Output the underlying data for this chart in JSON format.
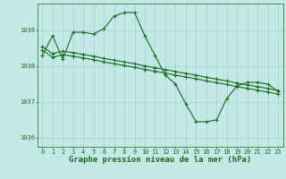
{
  "title": "Graphe pression niveau de la mer (hPa)",
  "bg_color": "#c2e8e8",
  "line_color": "#1a6b1a",
  "grid_color": "#9ecece",
  "ylim": [
    1035.75,
    1039.75
  ],
  "yticks": [
    1036,
    1037,
    1038,
    1039
  ],
  "xlim": [
    -0.5,
    23.5
  ],
  "xticks": [
    0,
    1,
    2,
    3,
    4,
    5,
    6,
    7,
    8,
    9,
    10,
    11,
    12,
    13,
    14,
    15,
    16,
    17,
    18,
    19,
    20,
    21,
    22,
    23
  ],
  "series1": {
    "x": [
      0,
      1,
      2,
      3,
      4,
      5,
      6,
      7,
      8,
      9,
      10,
      11,
      12,
      13,
      14,
      15,
      16,
      17,
      18,
      19,
      20,
      21,
      22,
      23
    ],
    "y": [
      1038.3,
      1038.85,
      1038.2,
      1038.95,
      1038.95,
      1038.9,
      1039.05,
      1039.4,
      1039.5,
      1039.5,
      1038.85,
      1038.3,
      1037.75,
      1037.5,
      1036.95,
      1036.45,
      1036.45,
      1036.5,
      1037.1,
      1037.45,
      1037.55,
      1037.55,
      1037.5,
      1037.3
    ]
  },
  "series2": {
    "x": [
      0,
      1,
      2,
      3,
      4,
      5,
      6,
      7,
      8,
      9,
      10,
      11,
      12,
      13,
      14,
      15,
      16,
      17,
      18,
      19,
      20,
      21,
      22,
      23
    ],
    "y": [
      1038.55,
      1038.35,
      1038.42,
      1038.38,
      1038.33,
      1038.28,
      1038.22,
      1038.17,
      1038.12,
      1038.07,
      1038.01,
      1037.96,
      1037.91,
      1037.85,
      1037.8,
      1037.75,
      1037.69,
      1037.64,
      1037.59,
      1037.53,
      1037.48,
      1037.43,
      1037.38,
      1037.32
    ]
  },
  "series3": {
    "x": [
      0,
      1,
      2,
      3,
      4,
      5,
      6,
      7,
      8,
      9,
      10,
      11,
      12,
      13,
      14,
      15,
      16,
      17,
      18,
      19,
      20,
      21,
      22,
      23
    ],
    "y": [
      1038.45,
      1038.25,
      1038.32,
      1038.28,
      1038.23,
      1038.18,
      1038.12,
      1038.07,
      1038.02,
      1037.97,
      1037.91,
      1037.86,
      1037.81,
      1037.75,
      1037.7,
      1037.65,
      1037.59,
      1037.54,
      1037.49,
      1037.43,
      1037.38,
      1037.33,
      1037.28,
      1037.22
    ]
  },
  "title_fontsize": 6.5,
  "tick_fontsize": 5.0,
  "marker": "+",
  "markersize": 3,
  "linewidth": 0.8
}
